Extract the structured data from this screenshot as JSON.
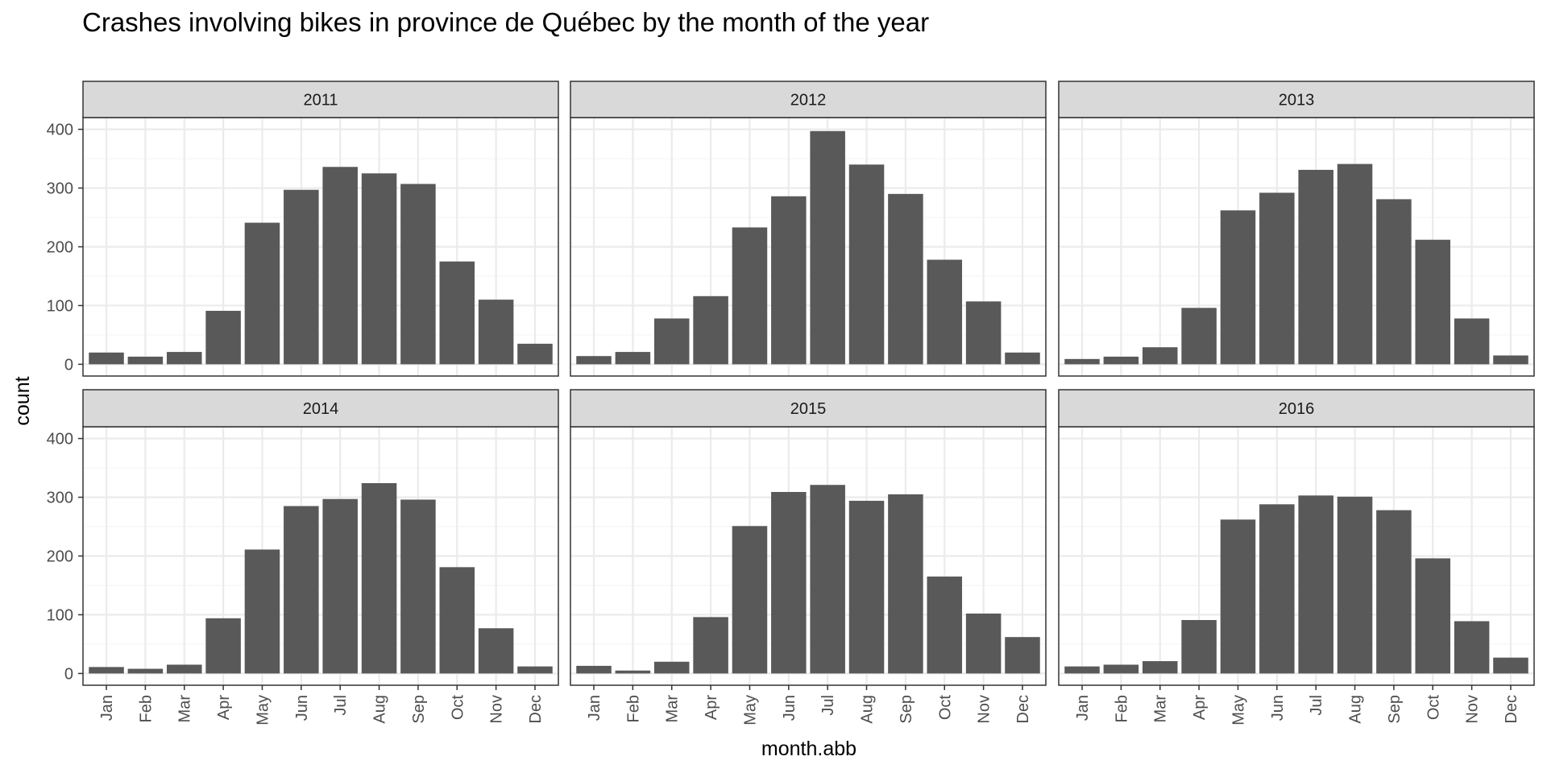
{
  "chart_data": {
    "type": "bar",
    "title": "Crashes involving bikes in province de Québec by the month of the year",
    "xlabel": "month.abb",
    "ylabel": "count",
    "ylim": [
      -20,
      420
    ],
    "yticks": [
      0,
      100,
      200,
      300,
      400
    ],
    "grid": true,
    "categories": [
      "Jan",
      "Feb",
      "Mar",
      "Apr",
      "May",
      "Jun",
      "Jul",
      "Aug",
      "Sep",
      "Oct",
      "Nov",
      "Dec"
    ],
    "panels": [
      {
        "label": "2011",
        "values": [
          20,
          13,
          21,
          91,
          241,
          297,
          336,
          325,
          307,
          175,
          110,
          35
        ]
      },
      {
        "label": "2012",
        "values": [
          14,
          21,
          78,
          116,
          233,
          286,
          397,
          340,
          290,
          178,
          107,
          20
        ]
      },
      {
        "label": "2013",
        "values": [
          9,
          13,
          29,
          96,
          262,
          292,
          331,
          341,
          281,
          212,
          78,
          15
        ]
      },
      {
        "label": "2014",
        "values": [
          11,
          8,
          15,
          94,
          211,
          285,
          297,
          324,
          296,
          181,
          77,
          12
        ]
      },
      {
        "label": "2015",
        "values": [
          13,
          5,
          20,
          96,
          251,
          309,
          321,
          294,
          305,
          165,
          102,
          62
        ]
      },
      {
        "label": "2016",
        "values": [
          12,
          15,
          21,
          91,
          262,
          288,
          303,
          301,
          278,
          196,
          89,
          27
        ]
      }
    ]
  },
  "colors": {
    "bar": "#595959",
    "strip_fill": "#d9d9d9",
    "strip_border": "#333333",
    "panel_border": "#333333",
    "grid_major": "#ebebeb",
    "grid_minor": "#f5f5f5",
    "axis_text": "#4d4d4d"
  }
}
